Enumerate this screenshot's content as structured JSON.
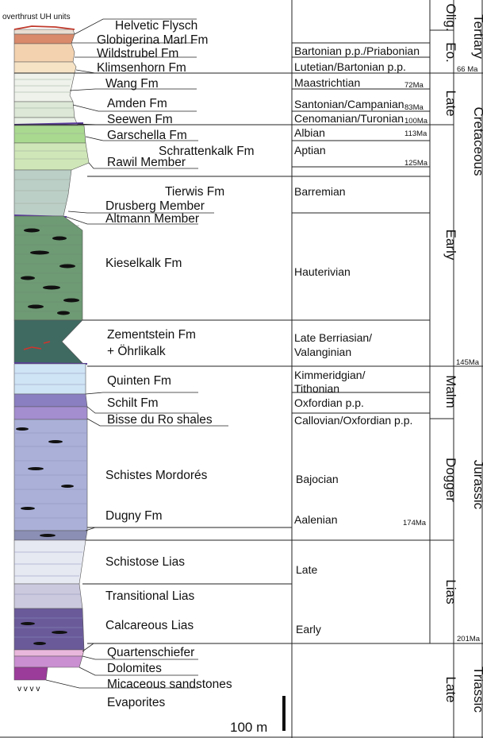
{
  "overthrust_label": "overthrust UH units",
  "formations": [
    "Helvetic Flysch",
    "Globigerina Marl Fm",
    "Wildstrubel Fm",
    "Klimsenhorn Fm",
    "Wang Fm",
    "Amden Fm",
    "Seewen Fm",
    "Garschella Fm",
    "Schrattenkalk Fm",
    "Rawil Member",
    "Tierwis Fm",
    "Drusberg Member",
    "Altmann Member",
    "Kieselkalk Fm",
    "Zementstein Fm",
    "+ Öhrlikalk",
    "Quinten Fm",
    "Schilt Fm",
    "Bisse du Ro shales",
    "Schistes Mordorés",
    "Dugny Fm",
    "Schistose Lias",
    "Transitional Lias",
    "Calcareous Lias",
    "Quartenschiefer",
    "Dolomites",
    "Micaceous sandstones",
    "Evaporites"
  ],
  "stages": [
    "Bartonian p.p./Priabonian",
    "Lutetian/Bartonian p.p.",
    "Maastrichtian",
    "Santonian/Campanian",
    "Cenomanian/Turonian",
    "Albian",
    "Aptian",
    "Barremian",
    "Hauterivian",
    "Late Berriasian/",
    "Valanginian",
    "Kimmeridgian/",
    "Tithonian",
    "Oxfordian p.p.",
    "Callovian/Oxfordian p.p.",
    "Bajocian",
    "Aalenian",
    "Late",
    "Early"
  ],
  "ages": [
    "72Ma",
    "83Ma",
    "100Ma",
    "113Ma",
    "125Ma",
    "145Ma",
    "174Ma",
    "201Ma",
    "66 Ma"
  ],
  "epochs": [
    "Olig.",
    "Eo.",
    "Late",
    "Early",
    "Malm",
    "Dogger",
    "Lias",
    "Late"
  ],
  "periods": [
    "Tertiary",
    "Cretaceous",
    "Jurassic",
    "Triassic"
  ],
  "scale_label": "100 m",
  "evaporite_symbol": "v v v v",
  "colors": {
    "flysch_red": "#c0392b",
    "globigerina": "#d98a6a",
    "wildstrubel": "#f3d2b0",
    "wang_pale": "#eef2ea",
    "amden": "#dde8d6",
    "seewen": "#e8efe4",
    "garschella": "#a9d98f",
    "schrattenkalk": "#cfe6b8",
    "tierwis": "#bccfc7",
    "kieselkalk": "#6e9a74",
    "zementstein": "#3f6a62",
    "quinten": "#cfe4f4",
    "schilt": "#8a7fc0",
    "mordores": "#aab0d8",
    "schistose_lias": "#e6e8f2",
    "transitional": "#cbc9de",
    "calcareous": "#6a5a9a",
    "quarten": "#e9b7dc",
    "dolomites": "#c98fd0",
    "micaceous": "#9b3b9a"
  }
}
